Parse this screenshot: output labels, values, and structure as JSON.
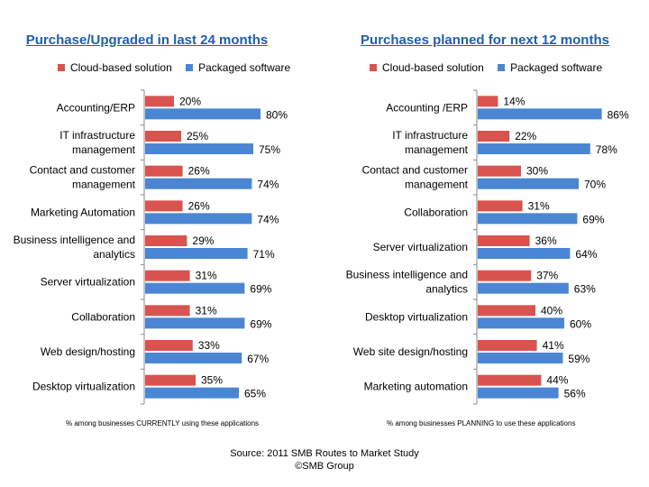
{
  "colors": {
    "cloud": "#d9534f",
    "packaged": "#4a86d4",
    "title": "#1f5fb0",
    "axis": "#888888"
  },
  "chart_data": [
    {
      "type": "bar",
      "orientation": "horizontal",
      "title": "Purchase/Upgraded in last 24 months",
      "legend": [
        "Cloud-based solution",
        "Packaged software"
      ],
      "legend_position": "top",
      "categories": [
        "Accounting/ERP",
        "IT infrastructure management",
        "Contact and customer management",
        "Marketing Automation",
        "Business intelligence and analytics",
        "Server virtualization",
        "Collaboration",
        "Web design/hosting",
        "Desktop virtualization"
      ],
      "category_lines": [
        [
          "Accounting/ERP"
        ],
        [
          "IT infrastructure",
          "management"
        ],
        [
          "Contact and customer",
          "management"
        ],
        [
          "Marketing Automation"
        ],
        [
          "Business intelligence and",
          "analytics"
        ],
        [
          "Server virtualization"
        ],
        [
          "Collaboration"
        ],
        [
          "Web design/hosting"
        ],
        [
          "Desktop virtualization"
        ]
      ],
      "series": [
        {
          "name": "Cloud-based solution",
          "values": [
            20,
            25,
            26,
            26,
            29,
            31,
            31,
            33,
            35
          ],
          "labels": [
            "20%",
            "25%",
            "26%",
            "26%",
            "29%",
            "31%",
            "31%",
            "33%",
            "35%"
          ]
        },
        {
          "name": "Packaged software",
          "values": [
            80,
            75,
            74,
            74,
            71,
            69,
            69,
            67,
            65
          ],
          "labels": [
            "80%",
            "75%",
            "74%",
            "74%",
            "71%",
            "69%",
            "69%",
            "67%",
            "65%"
          ]
        }
      ],
      "xlim": [
        0,
        100
      ],
      "footnote": "% among businesses CURRENTLY using these applications"
    },
    {
      "type": "bar",
      "orientation": "horizontal",
      "title": "Purchases planned for next 12 months",
      "legend": [
        "Cloud-based solution",
        "Packaged software"
      ],
      "legend_position": "top",
      "categories": [
        "Accounting /ERP",
        "IT infrastructure management",
        "Contact and customer management",
        "Collaboration",
        "Server virtualization",
        "Business intelligence and analytics",
        "Desktop virtualization",
        "Web site design/hosting",
        "Marketing automation"
      ],
      "category_lines": [
        [
          "Accounting /ERP"
        ],
        [
          "IT infrastructure",
          "management"
        ],
        [
          "Contact and customer",
          "management"
        ],
        [
          "Collaboration"
        ],
        [
          "Server virtualization"
        ],
        [
          "Business intelligence and",
          "analytics"
        ],
        [
          "Desktop virtualization"
        ],
        [
          "Web site design/hosting"
        ],
        [
          "Marketing automation"
        ]
      ],
      "series": [
        {
          "name": "Cloud-based solution",
          "values": [
            14,
            22,
            30,
            31,
            36,
            37,
            40,
            41,
            44
          ],
          "labels": [
            "14%",
            "22%",
            "30%",
            "31%",
            "36%",
            "37%",
            "40%",
            "41%",
            "44%"
          ]
        },
        {
          "name": "Packaged software",
          "values": [
            86,
            78,
            70,
            69,
            64,
            63,
            60,
            59,
            56
          ],
          "labels": [
            "86%",
            "78%",
            "70%",
            "69%",
            "64%",
            "63%",
            "60%",
            "59%",
            "56%"
          ]
        }
      ],
      "xlim": [
        0,
        100
      ],
      "footnote": "% among businesses PLANNING to  use these applications"
    }
  ],
  "source": {
    "line1": "Source: 2011 SMB Routes to Market Study",
    "line2": "©SMB Group"
  }
}
